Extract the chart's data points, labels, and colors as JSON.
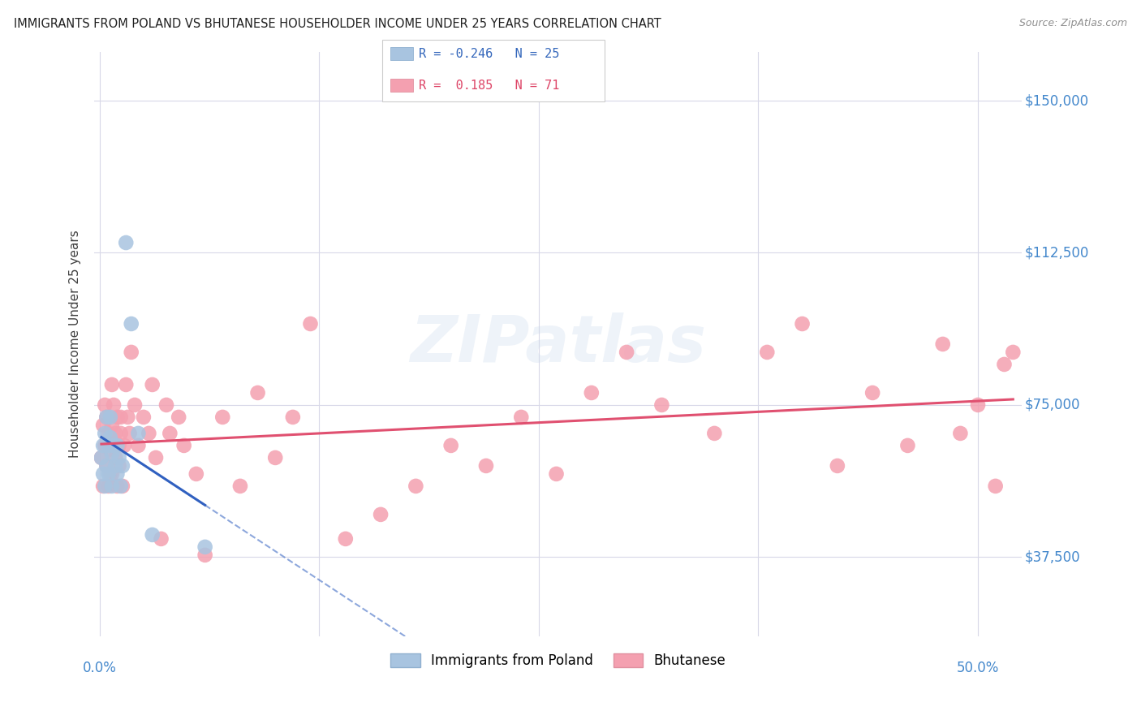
{
  "title": "IMMIGRANTS FROM POLAND VS BHUTANESE HOUSEHOLDER INCOME UNDER 25 YEARS CORRELATION CHART",
  "source": "Source: ZipAtlas.com",
  "ylabel": "Householder Income Under 25 years",
  "ytick_labels": [
    "$37,500",
    "$75,000",
    "$112,500",
    "$150,000"
  ],
  "ytick_values": [
    37500,
    75000,
    112500,
    150000
  ],
  "ylim": [
    18000,
    162000
  ],
  "xlim": [
    -0.003,
    0.525
  ],
  "legend_poland_r": "-0.246",
  "legend_poland_n": "25",
  "legend_bhutan_r": "0.185",
  "legend_bhutan_n": "71",
  "poland_color": "#a8c4e0",
  "bhutan_color": "#f4a0b0",
  "poland_line_color": "#3060c0",
  "bhutan_line_color": "#e05070",
  "grid_color": "#d8d8e8",
  "title_color": "#202020",
  "axis_label_color": "#4488cc",
  "watermark": "ZIPatlas",
  "poland_points_x": [
    0.001,
    0.002,
    0.002,
    0.003,
    0.003,
    0.004,
    0.004,
    0.005,
    0.005,
    0.006,
    0.006,
    0.007,
    0.007,
    0.008,
    0.009,
    0.01,
    0.01,
    0.011,
    0.012,
    0.013,
    0.015,
    0.018,
    0.022,
    0.03,
    0.06
  ],
  "poland_points_y": [
    62000,
    58000,
    65000,
    68000,
    55000,
    72000,
    60000,
    65000,
    58000,
    67000,
    72000,
    55000,
    63000,
    65000,
    60000,
    58000,
    65000,
    62000,
    55000,
    60000,
    115000,
    95000,
    68000,
    43000,
    40000
  ],
  "bhutan_points_x": [
    0.001,
    0.002,
    0.002,
    0.003,
    0.003,
    0.004,
    0.004,
    0.005,
    0.005,
    0.006,
    0.006,
    0.007,
    0.007,
    0.007,
    0.008,
    0.008,
    0.009,
    0.009,
    0.01,
    0.01,
    0.011,
    0.011,
    0.012,
    0.012,
    0.013,
    0.014,
    0.015,
    0.016,
    0.017,
    0.018,
    0.02,
    0.022,
    0.025,
    0.028,
    0.03,
    0.032,
    0.035,
    0.038,
    0.04,
    0.045,
    0.048,
    0.055,
    0.06,
    0.07,
    0.08,
    0.09,
    0.1,
    0.11,
    0.12,
    0.14,
    0.16,
    0.18,
    0.2,
    0.22,
    0.24,
    0.26,
    0.28,
    0.3,
    0.32,
    0.35,
    0.38,
    0.4,
    0.42,
    0.44,
    0.46,
    0.48,
    0.49,
    0.5,
    0.51,
    0.515,
    0.52
  ],
  "bhutan_points_y": [
    62000,
    55000,
    70000,
    65000,
    75000,
    60000,
    72000,
    55000,
    68000,
    58000,
    64000,
    70000,
    58000,
    80000,
    65000,
    75000,
    62000,
    68000,
    55000,
    72000,
    65000,
    60000,
    68000,
    72000,
    55000,
    65000,
    80000,
    72000,
    68000,
    88000,
    75000,
    65000,
    72000,
    68000,
    80000,
    62000,
    42000,
    75000,
    68000,
    72000,
    65000,
    58000,
    38000,
    72000,
    55000,
    78000,
    62000,
    72000,
    95000,
    42000,
    48000,
    55000,
    65000,
    60000,
    72000,
    58000,
    78000,
    88000,
    75000,
    68000,
    88000,
    95000,
    60000,
    78000,
    65000,
    90000,
    68000,
    75000,
    55000,
    85000,
    88000
  ]
}
